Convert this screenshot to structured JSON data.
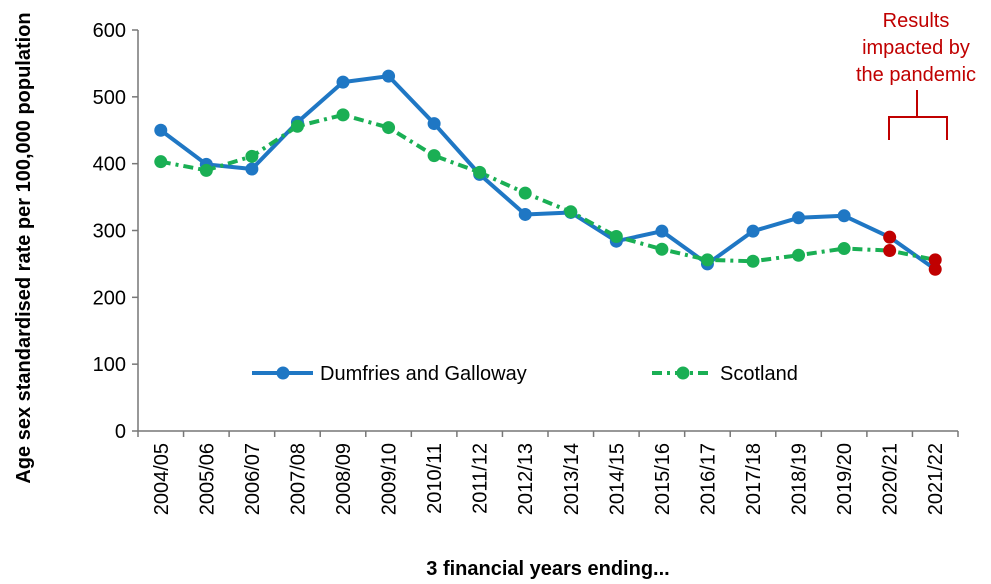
{
  "chart_data": {
    "type": "line",
    "title": "",
    "xlabel": "3 financial years ending...",
    "ylabel": "Age sex standardised rate per 100,000 population",
    "ylim": [
      0,
      600
    ],
    "yticks": [
      0,
      100,
      200,
      300,
      400,
      500,
      600
    ],
    "grid": false,
    "legend_position": "center",
    "categories": [
      "2004/05",
      "2005/06",
      "2006/07",
      "2007/08",
      "2008/09",
      "2009/10",
      "2010/11",
      "2011/12",
      "2012/13",
      "2013/14",
      "2014/15",
      "2015/16",
      "2016/17",
      "2017/18",
      "2018/19",
      "2019/20",
      "2020/21",
      "2021/22"
    ],
    "series": [
      {
        "name": "Dumfries and Galloway",
        "color": "#1f77c4",
        "line_style": "solid",
        "values": [
          450,
          399,
          392,
          462,
          522,
          531,
          460,
          384,
          324,
          327,
          284,
          299,
          250,
          299,
          319,
          322,
          290,
          242
        ]
      },
      {
        "name": "Scotland",
        "color": "#1aaf54",
        "line_style": "dash-dot",
        "values": [
          403,
          390,
          411,
          456,
          473,
          454,
          412,
          387,
          356,
          328,
          291,
          272,
          256,
          254,
          263,
          273,
          270,
          256
        ]
      }
    ],
    "highlight_color": "#c00000",
    "highlight_categories": [
      "2020/21",
      "2021/22"
    ],
    "annotation": {
      "lines": [
        "Results",
        "impacted by",
        "the pandemic"
      ]
    }
  }
}
